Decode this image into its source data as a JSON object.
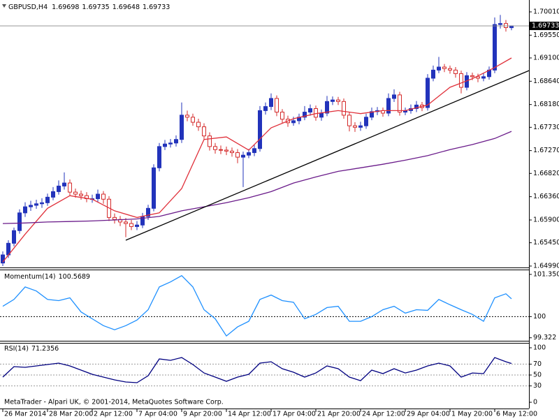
{
  "chart_data": [
    {
      "type": "candlestick",
      "title": "GBPUSD,H4",
      "quote": [
        1.69698,
        1.69735,
        1.69648,
        1.69733
      ],
      "up_color": "#2233bb",
      "down_color": "#d42a2a",
      "xlim": [
        -0.5,
        94.125
      ],
      "xticks": [
        {
          "value": 0,
          "label": "26 Mar 2014"
        },
        {
          "value": 8,
          "label": "28 Mar 20:00"
        },
        {
          "value": 16,
          "label": "2 Apr 12:00"
        },
        {
          "value": 24,
          "label": "7 Apr 04:00"
        },
        {
          "value": 32,
          "label": "9 Apr 20:00"
        },
        {
          "value": 40,
          "label": "14 Apr 12:00"
        },
        {
          "value": 48,
          "label": "17 Apr 04:00"
        },
        {
          "value": 56,
          "label": "21 Apr 20:00"
        },
        {
          "value": 64,
          "label": "24 Apr 12:00"
        },
        {
          "value": 72,
          "label": "29 Apr 04:00"
        },
        {
          "value": 80,
          "label": "1 May 20:00"
        },
        {
          "value": 88,
          "label": "6 May 12:00"
        }
      ],
      "ylim": [
        1.64962,
        1.70203
      ],
      "yticks": [
        {
          "value": 1.7001,
          "label": "1.70010"
        },
        {
          "value": 1.6955,
          "label": "1.69550"
        },
        {
          "value": 1.691,
          "label": "1.69100"
        },
        {
          "value": 1.6864,
          "label": "1.68640"
        },
        {
          "value": 1.6818,
          "label": "1.68180"
        },
        {
          "value": 1.6773,
          "label": "1.67730"
        },
        {
          "value": 1.6727,
          "label": "1.67270"
        },
        {
          "value": 1.6682,
          "label": "1.66820"
        },
        {
          "value": 1.6636,
          "label": "1.66360"
        },
        {
          "value": 1.659,
          "label": "1.65900"
        },
        {
          "value": 1.6545,
          "label": "1.65450"
        },
        {
          "value": 1.6499,
          "label": "1.64990"
        }
      ],
      "last_price": 1.69733,
      "candles": [
        [
          1.6505,
          1.6528,
          1.6499,
          1.6521
        ],
        [
          1.6521,
          1.655,
          1.6515,
          1.6544
        ],
        [
          1.6544,
          1.6575,
          1.6538,
          1.6569
        ],
        [
          1.6569,
          1.6611,
          1.6563,
          1.6604
        ],
        [
          1.6604,
          1.6625,
          1.6596,
          1.6616
        ],
        [
          1.6616,
          1.6628,
          1.6608,
          1.6619
        ],
        [
          1.6619,
          1.663,
          1.6612,
          1.6622
        ],
        [
          1.6622,
          1.6633,
          1.6614,
          1.6624
        ],
        [
          1.6624,
          1.6642,
          1.6618,
          1.6635
        ],
        [
          1.6635,
          1.6655,
          1.6629,
          1.6646
        ],
        [
          1.6646,
          1.6668,
          1.664,
          1.6657
        ],
        [
          1.6657,
          1.6684,
          1.665,
          1.6663
        ],
        [
          1.6663,
          1.667,
          1.6638,
          1.6645
        ],
        [
          1.6645,
          1.6652,
          1.6634,
          1.6641
        ],
        [
          1.6641,
          1.6648,
          1.663,
          1.6638
        ],
        [
          1.6638,
          1.6645,
          1.6625,
          1.6632
        ],
        [
          1.6632,
          1.664,
          1.6624,
          1.6632
        ],
        [
          1.6632,
          1.665,
          1.6626,
          1.6641
        ],
        [
          1.6641,
          1.6647,
          1.6622,
          1.6631
        ],
        [
          1.6631,
          1.6637,
          1.6588,
          1.6595
        ],
        [
          1.6595,
          1.6603,
          1.6583,
          1.6591
        ],
        [
          1.6591,
          1.6598,
          1.6578,
          1.6586
        ],
        [
          1.6586,
          1.6594,
          1.6556,
          1.6583
        ],
        [
          1.6583,
          1.659,
          1.657,
          1.6577
        ],
        [
          1.6577,
          1.6588,
          1.657,
          1.658
        ],
        [
          1.658,
          1.6604,
          1.6574,
          1.6597
        ],
        [
          1.6597,
          1.662,
          1.659,
          1.6613
        ],
        [
          1.6613,
          1.67,
          1.6607,
          1.6693
        ],
        [
          1.6693,
          1.6742,
          1.6686,
          1.6735
        ],
        [
          1.6735,
          1.6748,
          1.6728,
          1.674
        ],
        [
          1.674,
          1.675,
          1.6733,
          1.6742
        ],
        [
          1.6742,
          1.6757,
          1.6735,
          1.6749
        ],
        [
          1.6749,
          1.6822,
          1.6742,
          1.6797
        ],
        [
          1.6797,
          1.6806,
          1.6785,
          1.6793
        ],
        [
          1.6793,
          1.68,
          1.6776,
          1.6783
        ],
        [
          1.6783,
          1.679,
          1.6766,
          1.6774
        ],
        [
          1.6774,
          1.6781,
          1.6748,
          1.6756
        ],
        [
          1.6756,
          1.6763,
          1.6727,
          1.6735
        ],
        [
          1.6735,
          1.6742,
          1.6721,
          1.6729
        ],
        [
          1.6729,
          1.6737,
          1.672,
          1.6728
        ],
        [
          1.6728,
          1.6735,
          1.6718,
          1.6726
        ],
        [
          1.6726,
          1.6733,
          1.6715,
          1.6723
        ],
        [
          1.6723,
          1.673,
          1.6702,
          1.6714
        ],
        [
          1.6714,
          1.6725,
          1.6655,
          1.6718
        ],
        [
          1.6718,
          1.673,
          1.6712,
          1.6723
        ],
        [
          1.6723,
          1.6738,
          1.6716,
          1.6731
        ],
        [
          1.6731,
          1.6815,
          1.6725,
          1.6806
        ],
        [
          1.6806,
          1.6822,
          1.6798,
          1.6814
        ],
        [
          1.6814,
          1.684,
          1.6807,
          1.683
        ],
        [
          1.683,
          1.6836,
          1.6795,
          1.6803
        ],
        [
          1.6803,
          1.6809,
          1.6781,
          1.6789
        ],
        [
          1.6789,
          1.6796,
          1.6774,
          1.6782
        ],
        [
          1.6782,
          1.6794,
          1.6776,
          1.6786
        ],
        [
          1.6786,
          1.68,
          1.6779,
          1.6793
        ],
        [
          1.6793,
          1.6815,
          1.6787,
          1.6803
        ],
        [
          1.6803,
          1.6818,
          1.6796,
          1.681
        ],
        [
          1.681,
          1.6816,
          1.6786,
          1.6793
        ],
        [
          1.6793,
          1.6808,
          1.6786,
          1.6801
        ],
        [
          1.6801,
          1.6835,
          1.6795,
          1.6824
        ],
        [
          1.6824,
          1.6834,
          1.6817,
          1.6827
        ],
        [
          1.6827,
          1.6833,
          1.6817,
          1.6824
        ],
        [
          1.6824,
          1.683,
          1.679,
          1.6797
        ],
        [
          1.6797,
          1.6803,
          1.6765,
          1.6776
        ],
        [
          1.6776,
          1.6783,
          1.6764,
          1.6773
        ],
        [
          1.6773,
          1.6784,
          1.6766,
          1.6776
        ],
        [
          1.6776,
          1.68,
          1.677,
          1.6793
        ],
        [
          1.6793,
          1.6812,
          1.6787,
          1.6804
        ],
        [
          1.6804,
          1.6813,
          1.6797,
          1.6806
        ],
        [
          1.6806,
          1.6812,
          1.6794,
          1.6801
        ],
        [
          1.6801,
          1.684,
          1.6795,
          1.683
        ],
        [
          1.683,
          1.6848,
          1.6823,
          1.6837
        ],
        [
          1.6837,
          1.6843,
          1.6796,
          1.6803
        ],
        [
          1.6803,
          1.6812,
          1.6797,
          1.6806
        ],
        [
          1.6806,
          1.6818,
          1.68,
          1.681
        ],
        [
          1.681,
          1.6825,
          1.6803,
          1.6817
        ],
        [
          1.6817,
          1.6823,
          1.6805,
          1.6812
        ],
        [
          1.6812,
          1.6878,
          1.6806,
          1.687
        ],
        [
          1.687,
          1.6895,
          1.6864,
          1.6886
        ],
        [
          1.6886,
          1.6912,
          1.688,
          1.6892
        ],
        [
          1.6892,
          1.6898,
          1.6882,
          1.6889
        ],
        [
          1.6889,
          1.6895,
          1.6879,
          1.6886
        ],
        [
          1.6886,
          1.6892,
          1.6871,
          1.6879
        ],
        [
          1.6879,
          1.6885,
          1.684,
          1.6852
        ],
        [
          1.6852,
          1.6882,
          1.6846,
          1.6875
        ],
        [
          1.6875,
          1.6881,
          1.6866,
          1.6873
        ],
        [
          1.6873,
          1.6879,
          1.6862,
          1.687
        ],
        [
          1.687,
          1.688,
          1.6864,
          1.6873
        ],
        [
          1.6873,
          1.6893,
          1.6867,
          1.6886
        ],
        [
          1.6886,
          1.699,
          1.688,
          1.6976
        ],
        [
          1.6976,
          1.6995,
          1.6968,
          1.6978
        ],
        [
          1.6978,
          1.6985,
          1.6962,
          1.697
        ],
        [
          1.69698,
          1.69735,
          1.69648,
          1.69733
        ]
      ],
      "series": [
        {
          "color": "#e0303a",
          "x": [
            0,
            4,
            8,
            12,
            16,
            20,
            24,
            28,
            32,
            36,
            40,
            44,
            48,
            52,
            56,
            60,
            64,
            68,
            72,
            76,
            80,
            84,
            88,
            91
          ],
          "values": [
            1.6507,
            1.6562,
            1.6613,
            1.6638,
            1.6631,
            1.6608,
            1.6595,
            1.6604,
            1.6652,
            1.6749,
            1.6754,
            1.6728,
            1.6772,
            1.679,
            1.68,
            1.6806,
            1.68,
            1.6806,
            1.6806,
            1.6817,
            1.6852,
            1.6869,
            1.6891,
            1.691
          ]
        },
        {
          "color": "#6a1b8a",
          "x": [
            0,
            4,
            8,
            12,
            16,
            20,
            24,
            28,
            32,
            36,
            40,
            44,
            48,
            52,
            56,
            60,
            64,
            68,
            72,
            76,
            80,
            84,
            88,
            91
          ],
          "values": [
            1.6583,
            1.6584,
            1.6586,
            1.6587,
            1.6588,
            1.659,
            1.6592,
            1.6597,
            1.6608,
            1.6616,
            1.6624,
            1.6634,
            1.6646,
            1.6663,
            1.6675,
            1.6686,
            1.6693,
            1.67,
            1.6708,
            1.6717,
            1.6729,
            1.6739,
            1.6751,
            1.6765
          ]
        }
      ],
      "trendline": {
        "color": "#000000",
        "x": [
          22,
          94.125
        ],
        "values": [
          1.655,
          1.6885
        ]
      }
    },
    {
      "type": "line",
      "title": "Momentum(14)",
      "current": 100.5689,
      "ylim": [
        99.226,
        101.483
      ],
      "yticks": [
        101.3508,
        100,
        99.322
      ],
      "levels": [
        100
      ],
      "series": [
        {
          "color": "#1e90ff",
          "x": [
            0,
            2,
            4,
            6,
            8,
            10,
            12,
            14,
            16,
            18,
            20,
            22,
            24,
            26,
            28,
            30,
            32,
            34,
            36,
            38,
            40,
            42,
            44,
            46,
            48,
            50,
            52,
            54,
            56,
            58,
            60,
            62,
            64,
            66,
            68,
            70,
            72,
            74,
            76,
            78,
            80,
            82,
            84,
            86,
            88,
            90,
            91
          ],
          "values": [
            100.33,
            100.55,
            100.95,
            100.82,
            100.55,
            100.51,
            100.6,
            100.15,
            99.93,
            99.71,
            99.58,
            99.71,
            99.89,
            100.22,
            100.95,
            101.11,
            101.31,
            100.95,
            100.22,
            99.93,
            99.38,
            99.67,
            99.85,
            100.55,
            100.69,
            100.51,
            100.46,
            99.93,
            100.07,
            100.29,
            100.33,
            99.85,
            99.85,
            100,
            100.22,
            100.33,
            100.11,
            100.22,
            100.2,
            100.55,
            100.38,
            100.22,
            100.07,
            99.85,
            100.6,
            100.73,
            100.57
          ]
        }
      ]
    },
    {
      "type": "line",
      "title": "RSI(14)",
      "current": 71.2356,
      "ylim": [
        -11.5,
        107.7
      ],
      "yticks": [
        100,
        70,
        50,
        30,
        0
      ],
      "levels": [
        70,
        50,
        30
      ],
      "series": [
        {
          "color": "#000080",
          "x": [
            0,
            2,
            4,
            6,
            8,
            10,
            12,
            14,
            16,
            18,
            20,
            22,
            24,
            26,
            28,
            30,
            32,
            34,
            36,
            38,
            40,
            42,
            44,
            46,
            48,
            50,
            52,
            54,
            56,
            58,
            60,
            62,
            64,
            66,
            68,
            70,
            72,
            74,
            76,
            78,
            80,
            82,
            84,
            86,
            88,
            90,
            91
          ],
          "values": [
            46.2,
            65.4,
            64.1,
            66.7,
            69.2,
            71.8,
            66.7,
            59,
            51.3,
            46.2,
            41,
            37.2,
            35.9,
            48.7,
            79.5,
            76.9,
            82.1,
            69.2,
            53.8,
            46.2,
            38.5,
            46.2,
            51.3,
            71.8,
            74.4,
            61.5,
            55.1,
            46.2,
            53.8,
            66.7,
            61.5,
            46.2,
            39.7,
            59,
            52.6,
            61.5,
            53.8,
            59,
            66.7,
            71.8,
            66.7,
            46.2,
            53.8,
            52.6,
            82.1,
            74.4,
            71.2
          ]
        }
      ]
    }
  ],
  "footer": "MetaTrader - Alpari UK, © 2001-2014, MetaQuotes Software Corp."
}
